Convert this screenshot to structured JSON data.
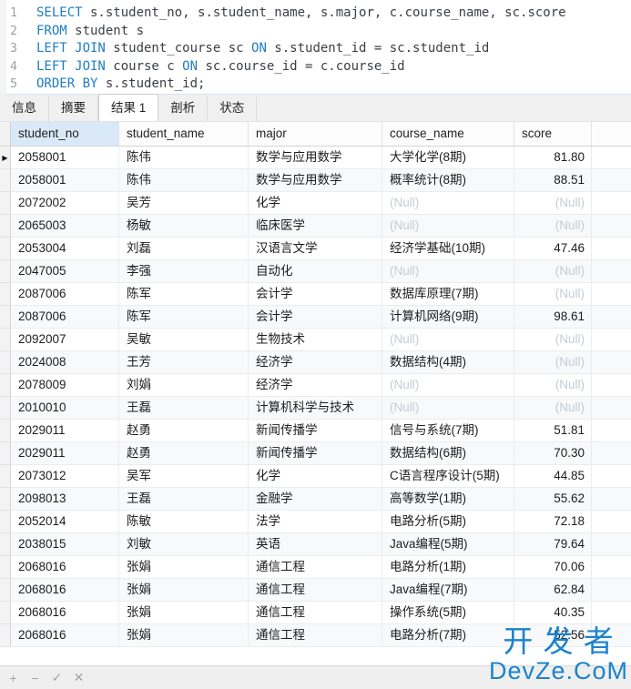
{
  "sql_editor": {
    "lines": [
      {
        "no": "1",
        "segments": [
          {
            "text": "SELECT",
            "kw": true
          },
          {
            "text": " s.student_no, s.student_name, s.major, c.course_name, sc.score",
            "kw": false
          }
        ]
      },
      {
        "no": "2",
        "segments": [
          {
            "text": "FROM",
            "kw": true
          },
          {
            "text": " student s",
            "kw": false
          }
        ]
      },
      {
        "no": "3",
        "segments": [
          {
            "text": "LEFT JOIN",
            "kw": true
          },
          {
            "text": " student_course sc ",
            "kw": false
          },
          {
            "text": "ON",
            "kw": true
          },
          {
            "text": " s.student_id = sc.student_id",
            "kw": false
          }
        ]
      },
      {
        "no": "4",
        "segments": [
          {
            "text": "LEFT JOIN",
            "kw": true
          },
          {
            "text": " course c ",
            "kw": false
          },
          {
            "text": "ON",
            "kw": true
          },
          {
            "text": " sc.course_id = c.course_id",
            "kw": false
          }
        ]
      },
      {
        "no": "5",
        "segments": [
          {
            "text": "ORDER BY",
            "kw": true
          },
          {
            "text": " s.student_id;",
            "kw": false
          }
        ]
      }
    ]
  },
  "tabs": [
    {
      "label": "信息",
      "active": false
    },
    {
      "label": "摘要",
      "active": false
    },
    {
      "label": "结果 1",
      "active": true
    },
    {
      "label": "剖析",
      "active": false
    },
    {
      "label": "状态",
      "active": false
    }
  ],
  "grid": {
    "columns": [
      "student_no",
      "student_name",
      "major",
      "course_name",
      "score"
    ],
    "selected_column_index": 0,
    "active_row_index": 0,
    "active_row_marker": "▶",
    "null_text": "(Null)",
    "rows": [
      [
        "2058001",
        "陈伟",
        "数学与应用数学",
        "大学化学(8期)",
        "81.80"
      ],
      [
        "2058001",
        "陈伟",
        "数学与应用数学",
        "概率统计(8期)",
        "88.51"
      ],
      [
        "2072002",
        "吴芳",
        "化学",
        null,
        null
      ],
      [
        "2065003",
        "杨敏",
        "临床医学",
        null,
        null
      ],
      [
        "2053004",
        "刘磊",
        "汉语言文学",
        "经济学基础(10期)",
        "47.46"
      ],
      [
        "2047005",
        "李强",
        "自动化",
        null,
        null
      ],
      [
        "2087006",
        "陈军",
        "会计学",
        "数据库原理(7期)",
        null
      ],
      [
        "2087006",
        "陈军",
        "会计学",
        "计算机网络(9期)",
        "98.61"
      ],
      [
        "2092007",
        "吴敏",
        "生物技术",
        null,
        null
      ],
      [
        "2024008",
        "王芳",
        "经济学",
        "数据结构(4期)",
        null
      ],
      [
        "2078009",
        "刘娟",
        "经济学",
        null,
        null
      ],
      [
        "2010010",
        "王磊",
        "计算机科学与技术",
        null,
        null
      ],
      [
        "2029011",
        "赵勇",
        "新闻传播学",
        "信号与系统(7期)",
        "51.81"
      ],
      [
        "2029011",
        "赵勇",
        "新闻传播学",
        "数据结构(6期)",
        "70.30"
      ],
      [
        "2073012",
        "吴军",
        "化学",
        "C语言程序设计(5期)",
        "44.85"
      ],
      [
        "2098013",
        "王磊",
        "金融学",
        "高等数学(1期)",
        "55.62"
      ],
      [
        "2052014",
        "陈敏",
        "法学",
        "电路分析(5期)",
        "72.18"
      ],
      [
        "2038015",
        "刘敏",
        "英语",
        "Java编程(5期)",
        "79.64"
      ],
      [
        "2068016",
        "张娟",
        "通信工程",
        "电路分析(1期)",
        "70.06"
      ],
      [
        "2068016",
        "张娟",
        "通信工程",
        "Java编程(7期)",
        "62.84"
      ],
      [
        "2068016",
        "张娟",
        "通信工程",
        "操作系统(5期)",
        "40.35"
      ],
      [
        "2068016",
        "张娟",
        "通信工程",
        "电路分析(7期)",
        "52.56"
      ]
    ]
  },
  "toolbar": {
    "icons": [
      {
        "name": "add-record-icon",
        "glyph": "+"
      },
      {
        "name": "delete-record-icon",
        "glyph": "−"
      },
      {
        "name": "apply-changes-icon",
        "glyph": "✓"
      },
      {
        "name": "discard-changes-icon",
        "glyph": "✕"
      }
    ]
  },
  "watermark": {
    "line1": "开 发 者",
    "line2": "DevZe.CoM"
  },
  "colors": {
    "keyword_blue": "#1f7dc2",
    "watermark_blue": "#1b82cc",
    "selected_header": "#d9e9f8",
    "null_gray": "#c5ccd4"
  }
}
